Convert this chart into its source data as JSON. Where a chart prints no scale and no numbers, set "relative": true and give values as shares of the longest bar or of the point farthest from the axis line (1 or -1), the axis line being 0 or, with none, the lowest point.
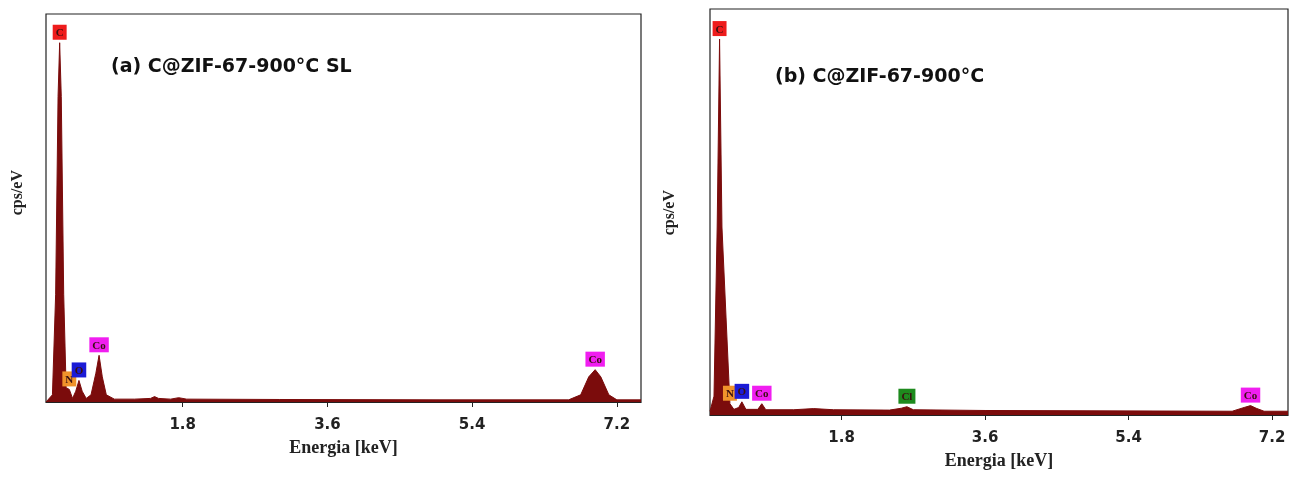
{
  "chart_data": [
    {
      "type": "area",
      "title": "(a) C@ZIF-67-900°C SL",
      "xlabel": "Energia [keV]",
      "ylabel": "cps/eV",
      "relative": true,
      "xlim": [
        0.1,
        7.5
      ],
      "xticks": [
        1.8,
        3.6,
        5.4,
        7.2
      ],
      "series": [
        {
          "color": "#7b0c0c",
          "x": [
            0.1,
            0.18,
            0.22,
            0.25,
            0.27,
            0.29,
            0.32,
            0.35,
            0.39,
            0.43,
            0.47,
            0.51,
            0.55,
            0.6,
            0.66,
            0.72,
            0.76,
            0.8,
            0.85,
            0.95,
            1.2,
            1.4,
            1.45,
            1.5,
            1.65,
            1.75,
            1.85,
            3,
            5,
            6.6,
            6.75,
            6.85,
            6.93,
            7.0,
            7.1,
            7.2,
            7.5
          ],
          "values": [
            0,
            0.02,
            0.3,
            0.85,
            1,
            0.85,
            0.3,
            0.04,
            0.035,
            0.01,
            0.03,
            0.06,
            0.03,
            0.01,
            0.02,
            0.08,
            0.13,
            0.07,
            0.02,
            0.008,
            0.008,
            0.01,
            0.015,
            0.01,
            0.008,
            0.012,
            0.008,
            0.007,
            0.006,
            0.006,
            0.02,
            0.07,
            0.09,
            0.07,
            0.02,
            0.006,
            0.006
          ]
        }
      ],
      "annotations": [
        {
          "text": "C",
          "x": 0.27,
          "y": 1
        },
        {
          "text": "N",
          "x": 0.39,
          "y": 0.035
        },
        {
          "text": "O",
          "x": 0.51,
          "y": 0.06
        },
        {
          "text": "Co",
          "x": 0.76,
          "y": 0.13
        },
        {
          "text": "Co",
          "x": 6.93,
          "y": 0.09
        }
      ]
    },
    {
      "type": "area",
      "title": "(b) C@ZIF-67-900°C",
      "xlabel": "Energia [keV]",
      "ylabel": "cps/eV",
      "relative": true,
      "xlim": [
        0.15,
        7.4
      ],
      "xticks": [
        1.8,
        3.6,
        5.4,
        7.2
      ],
      "series": [
        {
          "color": "#7b0c0c",
          "x": [
            0.15,
            0.2,
            0.24,
            0.27,
            0.3,
            0.4,
            0.45,
            0.51,
            0.55,
            0.6,
            0.75,
            0.8,
            0.85,
            1.2,
            1.45,
            1.7,
            2.4,
            2.55,
            2.62,
            2.7,
            3.6,
            6.7,
            6.85,
            6.93,
            7.0,
            7.1,
            7.4
          ],
          "values": [
            0.01,
            0.05,
            0.5,
            1,
            0.5,
            0.03,
            0.015,
            0.02,
            0.035,
            0.015,
            0.015,
            0.03,
            0.014,
            0.014,
            0.017,
            0.014,
            0.013,
            0.018,
            0.022,
            0.014,
            0.012,
            0.01,
            0.02,
            0.025,
            0.018,
            0.01,
            0.01
          ]
        }
      ],
      "annotations": [
        {
          "text": "C",
          "x": 0.27,
          "y": 1
        },
        {
          "text": "N",
          "x": 0.4,
          "y": 0.03
        },
        {
          "text": "O",
          "x": 0.55,
          "y": 0.035
        },
        {
          "text": "Co",
          "x": 0.8,
          "y": 0.03
        },
        {
          "text": "Cl",
          "x": 2.62,
          "y": 0.022
        },
        {
          "text": "Co",
          "x": 6.93,
          "y": 0.025
        }
      ]
    }
  ]
}
